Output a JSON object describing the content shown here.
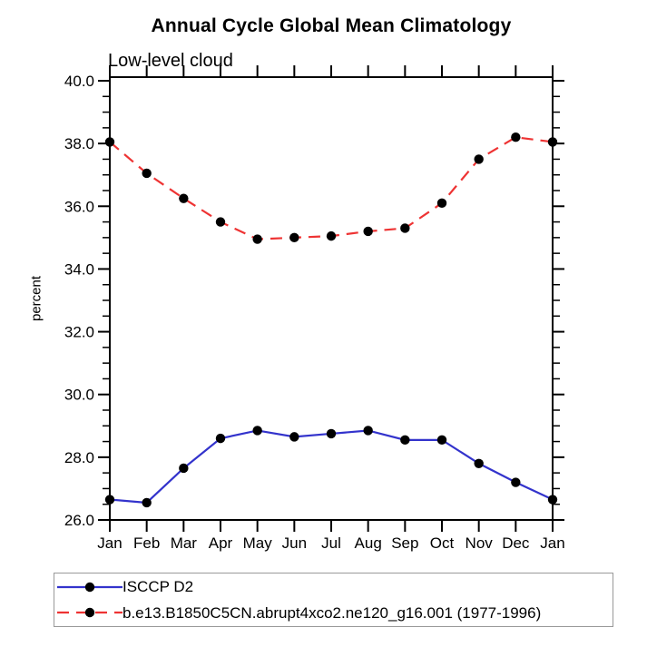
{
  "page": {
    "background": "#FFFFFF"
  },
  "chart_data": {
    "type": "line",
    "title": "Annual Cycle Global Mean Climatology",
    "subtitle": "Low-level cloud",
    "xlabel": "",
    "ylabel": "percent",
    "categories": [
      "Jan",
      "Feb",
      "Mar",
      "Apr",
      "May",
      "Jun",
      "Jul",
      "Aug",
      "Sep",
      "Oct",
      "Nov",
      "Dec",
      "Jan"
    ],
    "series": [
      {
        "name": "ISCCP D2",
        "line_color": "#3333CC",
        "line_style": "solid",
        "marker": "filled-circle",
        "marker_color": "#000000",
        "values": [
          26.65,
          26.55,
          27.65,
          28.6,
          28.85,
          28.65,
          28.75,
          28.85,
          28.55,
          28.55,
          27.8,
          27.2,
          26.65
        ]
      },
      {
        "name": "b.e13.B1850C5CN.abrupt4xco2.ne120_g16.001 (1977-1996)",
        "line_color": "#EE3333",
        "line_style": "dashed",
        "marker": "filled-circle",
        "marker_color": "#000000",
        "values": [
          38.05,
          37.05,
          36.25,
          35.5,
          34.95,
          35.0,
          35.05,
          35.2,
          35.3,
          36.1,
          37.5,
          38.2,
          38.05
        ]
      }
    ],
    "ylim": [
      26.0,
      40.1
    ],
    "y_major_ticks": [
      26.0,
      28.0,
      30.0,
      32.0,
      34.0,
      36.0,
      38.0,
      40.0
    ],
    "y_minor_step": 0.5,
    "y_tick_decimals": 1,
    "grid": false,
    "legend_position": "bottom-left",
    "axis_color": "#000000",
    "text_color": "#000000"
  }
}
